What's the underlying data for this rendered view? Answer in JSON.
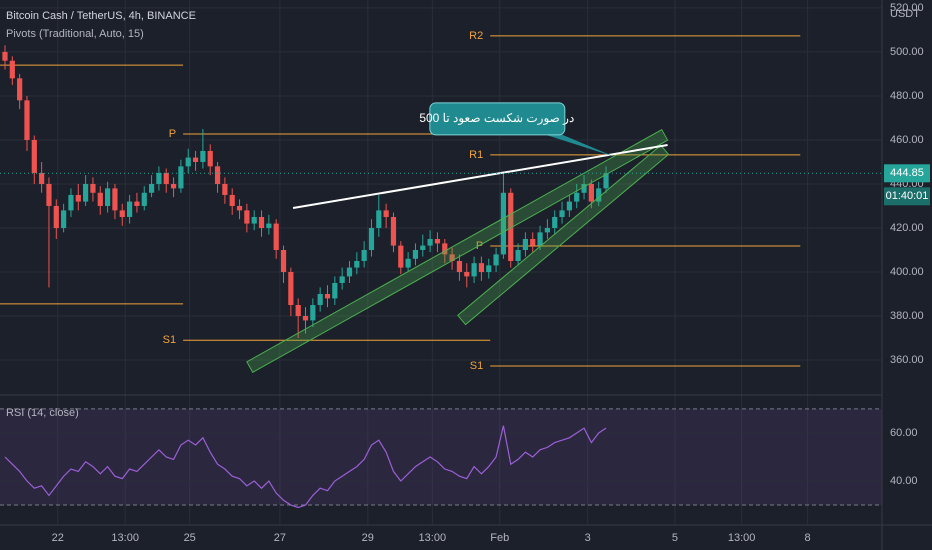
{
  "chart_data": {
    "type": "candlestick",
    "title": "Bitcoin Cash / TetherUS, 4h, BINANCE",
    "currency": "USDT",
    "colors": {
      "up": "#26a69a",
      "down": "#ef5350"
    },
    "open": [
      500,
      496,
      488,
      478,
      460,
      445,
      440,
      430,
      420,
      428,
      435,
      432,
      440,
      436,
      430,
      438,
      428,
      425,
      432,
      430,
      436,
      440,
      445,
      440,
      438,
      448,
      452,
      450,
      455,
      448,
      440,
      435,
      430,
      428,
      422,
      425,
      420,
      422,
      410,
      400,
      385,
      380,
      378,
      385,
      390,
      388,
      395,
      398,
      402,
      405,
      410,
      420,
      428,
      425,
      412,
      402,
      406,
      410,
      412,
      415,
      413,
      408,
      405,
      400,
      398,
      404,
      400,
      403,
      408,
      436,
      405,
      410,
      415,
      412,
      418,
      420,
      425,
      428,
      432,
      436,
      440,
      432,
      438
    ],
    "high": [
      503,
      498,
      490,
      480,
      462,
      450,
      443,
      433,
      431,
      438,
      440,
      444,
      443,
      439,
      441,
      440,
      431,
      435,
      436,
      439,
      444,
      448,
      447,
      443,
      451,
      456,
      455,
      465,
      458,
      450,
      443,
      438,
      433,
      431,
      428,
      428,
      426,
      424,
      412,
      402,
      388,
      384,
      388,
      393,
      394,
      398,
      402,
      405,
      409,
      414,
      424,
      435,
      431,
      427,
      414,
      409,
      413,
      417,
      419,
      418,
      415,
      411,
      408,
      404,
      407,
      407,
      406,
      411,
      445,
      438,
      413,
      418,
      418,
      421,
      424,
      428,
      432,
      435,
      440,
      444,
      442,
      441,
      448
    ],
    "low": [
      492,
      485,
      474,
      455,
      440,
      436,
      393,
      415,
      418,
      425,
      428,
      430,
      432,
      426,
      427,
      424,
      421,
      422,
      427,
      428,
      434,
      437,
      436,
      434,
      436,
      445,
      446,
      447,
      444,
      436,
      431,
      426,
      424,
      418,
      419,
      416,
      417,
      406,
      395,
      380,
      370,
      372,
      375,
      382,
      384,
      385,
      392,
      395,
      399,
      402,
      407,
      416,
      420,
      409,
      399,
      400,
      403,
      407,
      409,
      409,
      404,
      401,
      396,
      393,
      395,
      396,
      397,
      400,
      406,
      402,
      403,
      407,
      409,
      410,
      415,
      417,
      422,
      425,
      429,
      433,
      429,
      430,
      436
    ],
    "close": [
      496,
      488,
      478,
      460,
      445,
      440,
      430,
      420,
      428,
      435,
      432,
      440,
      436,
      430,
      438,
      428,
      425,
      432,
      430,
      436,
      440,
      445,
      440,
      438,
      448,
      452,
      450,
      455,
      448,
      440,
      435,
      430,
      428,
      422,
      425,
      420,
      422,
      410,
      400,
      385,
      380,
      378,
      385,
      390,
      388,
      395,
      398,
      402,
      405,
      410,
      420,
      428,
      425,
      412,
      402,
      406,
      410,
      412,
      415,
      413,
      408,
      405,
      400,
      398,
      404,
      400,
      403,
      408,
      436,
      405,
      410,
      415,
      412,
      418,
      420,
      425,
      428,
      432,
      436,
      440,
      432,
      438,
      444.85
    ],
    "countdown": "01:40:01",
    "xlim": [
      -0.68,
      119.65
    ],
    "xticks": [
      {
        "value": 7.2,
        "label": "22"
      },
      {
        "value": 16.4,
        "label": "13:00"
      },
      {
        "value": 25.2,
        "label": "25"
      },
      {
        "value": 37.5,
        "label": "27"
      },
      {
        "value": 49.5,
        "label": "29"
      },
      {
        "value": 58.3,
        "label": "13:00"
      },
      {
        "value": 67.5,
        "label": "Feb"
      },
      {
        "value": 79.5,
        "label": "3"
      },
      {
        "value": 91.4,
        "label": "5"
      },
      {
        "value": 100.5,
        "label": "13:00"
      },
      {
        "value": 109.5,
        "label": "8"
      }
    ],
    "ylim": [
      344.1,
      523.6
    ],
    "yticks": [
      {
        "value": 360,
        "label": "360.00"
      },
      {
        "value": 380,
        "label": "380.00"
      },
      {
        "value": 400,
        "label": "400.00"
      },
      {
        "value": 420,
        "label": "420.00"
      },
      {
        "value": 440,
        "label": "440.00"
      },
      {
        "value": 460,
        "label": "460.00"
      },
      {
        "value": 480,
        "label": "480.00"
      },
      {
        "value": 500,
        "label": "500.00"
      },
      {
        "value": 520,
        "label": "520.00"
      }
    ],
    "pivots": {
      "name": "Pivots (Traditional, Auto, 15)",
      "color": "#f0a33a",
      "periods": [
        {
          "x": [
            -0.68,
            24.3
          ],
          "levels": [
            {
              "value": 494
            },
            {
              "value": 385.5
            }
          ]
        },
        {
          "x": [
            24.3,
            66.2
          ],
          "levels": [
            {
              "label": "P",
              "value": 462.7
            },
            {
              "label": "S1",
              "value": 369
            }
          ]
        },
        {
          "x": [
            66.2,
            108.5
          ],
          "levels": [
            {
              "label": "R2",
              "value": 507.3
            },
            {
              "label": "R1",
              "value": 453.2
            },
            {
              "label": "P",
              "value": 411.8
            },
            {
              "label": "S1",
              "value": 357.3
            }
          ]
        }
      ]
    },
    "trendline": {
      "x": [
        39.3,
        90.4
      ],
      "y": [
        429.1,
        457.7
      ],
      "color": "#ffffff"
    },
    "channels": [
      {
        "x": [
          33.4,
          90.0
        ],
        "y": [
          356.8,
          462.3
        ]
      },
      {
        "x": [
          62.3,
          90.0
        ],
        "y": [
          378.2,
          455.5
        ]
      }
    ],
    "channel_color": "#4caf50",
    "callout": {
      "text": "در صورت شکست صعود تا 500",
      "x": 83.2,
      "y": 452.3,
      "color": "#1f8a90"
    },
    "rsi": {
      "name": "RSI (14, close)",
      "color": "#9c5fd6",
      "values": [
        50,
        47,
        44,
        40,
        37,
        38,
        34,
        38,
        42,
        45,
        44,
        48,
        46,
        43,
        46,
        42,
        41,
        45,
        44,
        47,
        50,
        53,
        50,
        49,
        55,
        57,
        55,
        58,
        52,
        47,
        45,
        42,
        41,
        38,
        40,
        37,
        40,
        35,
        32,
        30,
        29,
        30,
        34,
        37,
        36,
        40,
        42,
        44,
        46,
        49,
        55,
        57,
        52,
        44,
        40,
        43,
        46,
        48,
        50,
        48,
        45,
        44,
        42,
        41,
        46,
        43,
        46,
        50,
        63,
        47,
        49,
        52,
        50,
        53,
        54,
        56,
        57,
        58,
        60,
        62,
        56,
        60,
        62
      ],
      "ylim": [
        21.7,
        75.8
      ],
      "yticks": [
        {
          "value": 40,
          "label": "40.00"
        },
        {
          "value": 60,
          "label": "60.00"
        }
      ],
      "bands": [
        70,
        30
      ]
    }
  }
}
